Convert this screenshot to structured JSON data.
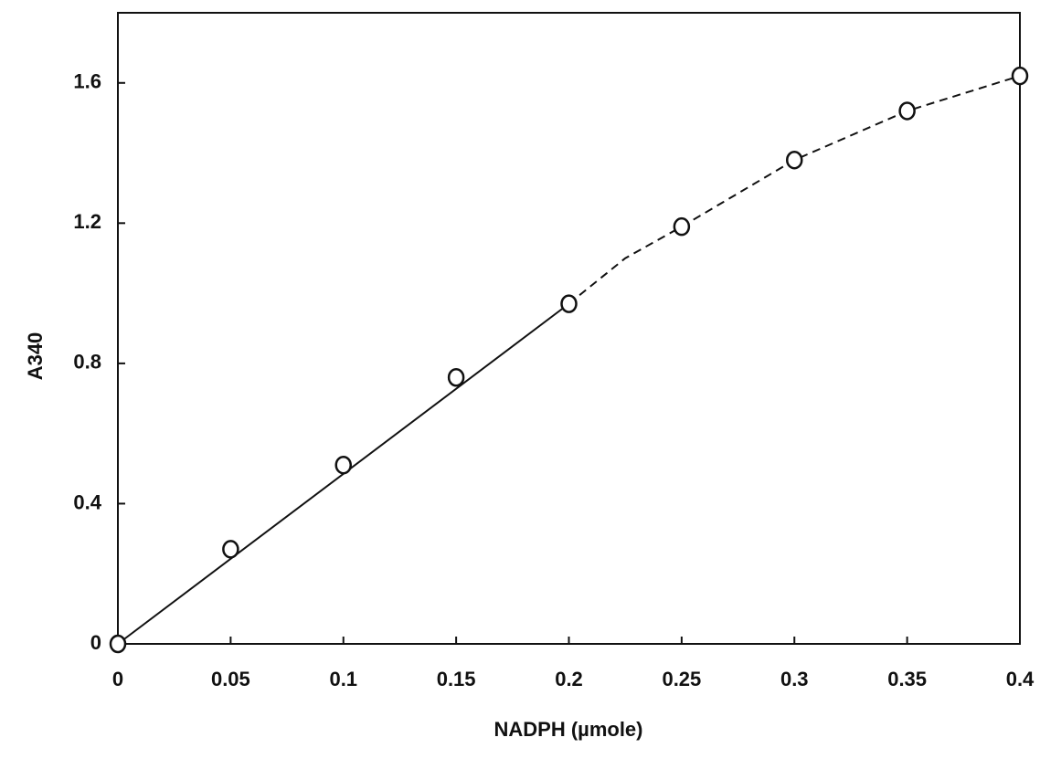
{
  "chart_data": {
    "type": "scatter",
    "x_label": "NADPH (µmole)",
    "y_label": "A340",
    "series": [
      {
        "marker": "circle",
        "color": "#111111",
        "x": [
          0,
          0.05,
          0.1,
          0.15,
          0.2,
          0.25,
          0.3,
          0.35,
          0.4
        ],
        "values": [
          0,
          0.27,
          0.51,
          0.76,
          0.97,
          1.19,
          1.38,
          1.52,
          1.62
        ]
      }
    ],
    "lines": [
      {
        "style": "solid",
        "color": "#111111",
        "x": [
          0,
          0.2
        ],
        "values": [
          0,
          0.97
        ]
      },
      {
        "style": "dashed",
        "color": "#111111",
        "x": [
          0.2,
          0.225,
          0.25,
          0.3,
          0.35,
          0.4
        ],
        "values": [
          0.97,
          1.1,
          1.19,
          1.38,
          1.52,
          1.62
        ]
      }
    ],
    "xlim": [
      0,
      0.4
    ],
    "ylim": [
      0,
      1.8
    ],
    "xticks": [
      0,
      0.05,
      0.1,
      0.15,
      0.2,
      0.25,
      0.3,
      0.35,
      0.4
    ],
    "yticks": [
      0,
      0.4,
      0.8,
      1.2,
      1.6
    ],
    "grid": false
  }
}
